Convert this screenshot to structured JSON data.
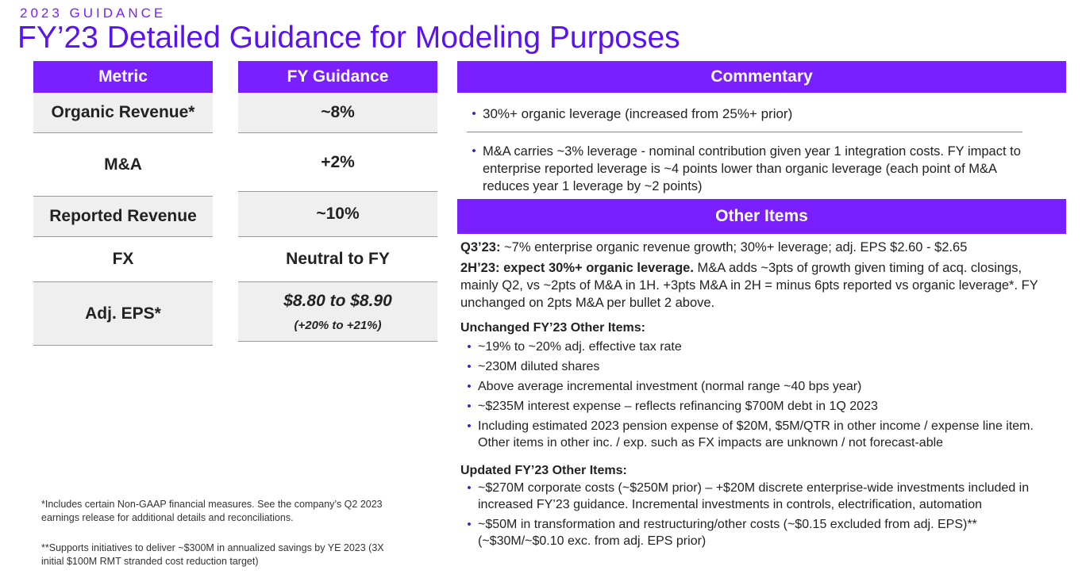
{
  "header": {
    "eyebrow": "2023 GUIDANCE",
    "title": "FY’23 Detailed Guidance for Modeling Purposes"
  },
  "table": {
    "metric_header": "Metric",
    "guidance_header": "FY Guidance",
    "rows": [
      {
        "metric": "Organic Revenue*",
        "guidance": "~8%"
      },
      {
        "metric": "M&A",
        "guidance": "+2%"
      },
      {
        "metric": "Reported Revenue",
        "guidance": "~10%"
      },
      {
        "metric": "FX",
        "guidance": "Neutral to FY"
      },
      {
        "metric": "Adj. EPS*",
        "guidance": "$8.80 to $8.90",
        "guidance_sub": "(+20% to +21%)"
      }
    ]
  },
  "commentary": {
    "header": "Commentary",
    "bullets": [
      "30%+ organic leverage (increased from 25%+ prior)",
      "M&A carries ~3% leverage - nominal contribution given year 1 integration costs. FY impact to enterprise reported leverage is ~4 points lower than organic leverage (each point of M&A reduces year 1 leverage by ~2 points)"
    ]
  },
  "other_items": {
    "header": "Other Items",
    "q3_label": "Q3’23:",
    "q3_text": " ~7% enterprise organic revenue growth; 30%+ leverage; adj. EPS $2.60 - $2.65",
    "h2_label": "2H’23: expect 30%+ organic leverage.",
    "h2_text": " M&A adds ~3pts of growth given timing of acq. closings, mainly Q2, vs ~2pts of M&A in 1H. +3pts M&A in 2H = minus 6pts reported vs organic leverage*. FY unchanged on 2pts M&A per bullet 2 above.",
    "unchanged_title": "Unchanged FY’23 Other Items:",
    "unchanged": [
      "~19% to ~20% adj. effective tax rate",
      "~230M diluted shares",
      "Above average incremental investment (normal range ~40 bps year)",
      "~$235M interest expense – reflects refinancing $700M debt in 1Q 2023",
      "Including estimated 2023 pension expense of $20M, $5M/QTR in other income / expense line item. Other items in other inc. / exp. such as FX impacts are unknown / not forecast-able"
    ],
    "updated_title": "Updated FY’23 Other Items:",
    "updated": [
      "~$270M corporate costs (~$250M prior) – +$20M discrete enterprise-wide investments included in increased FY’23 guidance. Incremental investments in controls, electrification, automation",
      "~$50M in transformation and restructuring/other costs (~$0.15 excluded from adj. EPS)** (~$30M/~$0.10 exc. from adj. EPS prior)"
    ]
  },
  "footnotes": {
    "note1": "*Includes certain Non-GAAP financial measures. See the company’s Q2 2023 earnings release for additional details and reconciliations.",
    "note2": "**Supports initiatives to deliver ~$300M in annualized savings by YE 2023 (3X initial $100M RMT stranded cost reduction target)"
  },
  "colors": {
    "accent": "#7a1fff",
    "title": "#5b12f0",
    "bullet": "#3b1fd6",
    "shade": "#efefef"
  }
}
